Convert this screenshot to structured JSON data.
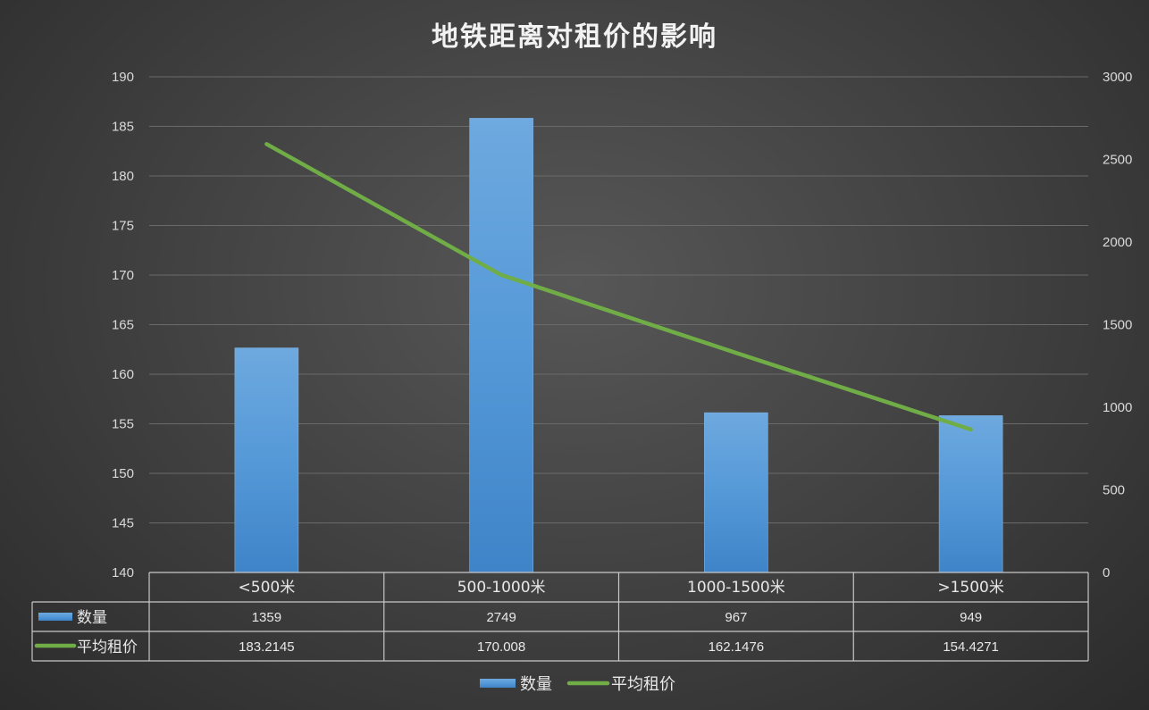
{
  "chart_data": {
    "type": "bar",
    "title": "地铁距离对租价的影响",
    "categories": [
      "<500米",
      "500-1000米",
      "1000-1500米",
      ">1500米"
    ],
    "series": [
      {
        "name": "数量",
        "type": "bar",
        "axis": "right",
        "values": [
          1359,
          2749,
          967,
          949
        ],
        "color": "#5b9bd5"
      },
      {
        "name": "平均租价",
        "type": "line",
        "axis": "left",
        "values": [
          183.2145,
          170.008,
          162.1476,
          154.4271
        ],
        "color": "#70ad47"
      }
    ],
    "table_values": {
      "数量": [
        "1359",
        "2749",
        "967",
        "949"
      ],
      "平均租价": [
        "183.2145",
        "170.008",
        "162.1476",
        "154.4271"
      ]
    },
    "left_axis": {
      "ylim": [
        140,
        190
      ],
      "ticks": [
        "190",
        "185",
        "180",
        "175",
        "170",
        "165",
        "160",
        "155",
        "150",
        "145",
        "140"
      ]
    },
    "right_axis": {
      "ylim": [
        0,
        3000
      ],
      "ticks": [
        "3000",
        "2500",
        "2000",
        "1500",
        "1000",
        "500",
        "0"
      ]
    },
    "grid": true,
    "legend": "bottom",
    "data_table": true
  }
}
